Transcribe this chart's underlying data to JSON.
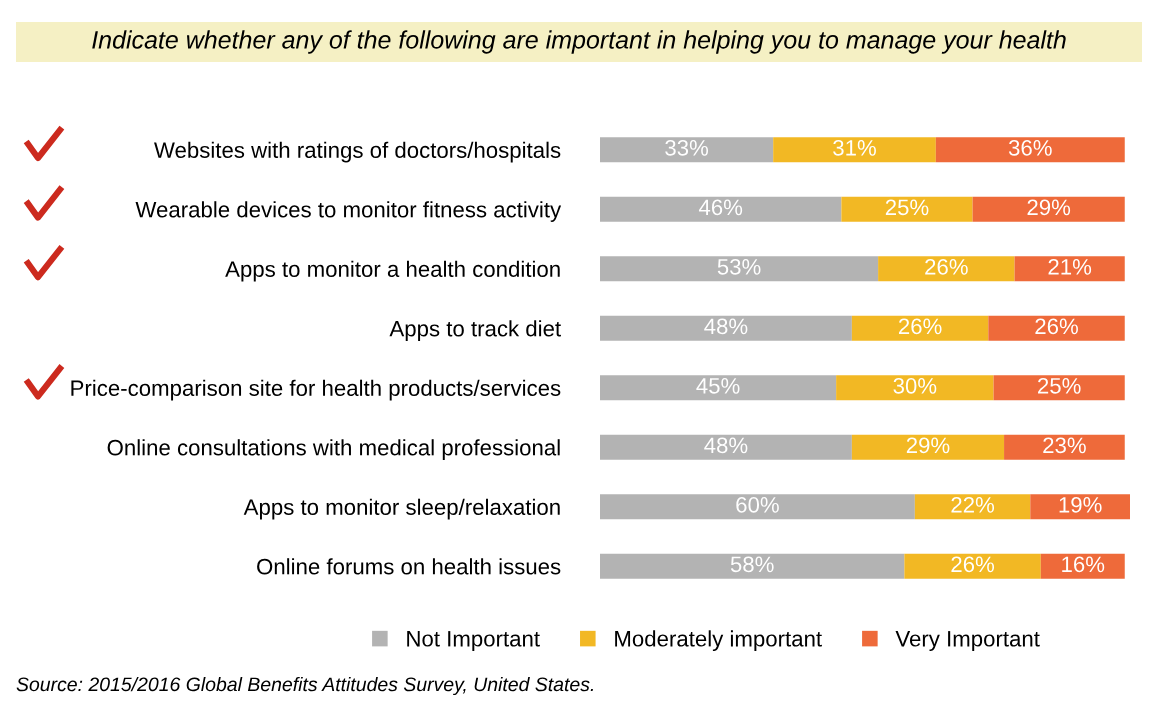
{
  "chart_data": {
    "type": "bar",
    "orientation": "horizontal",
    "stacked": true,
    "title": "Indicate whether any of the following are important in helping you to manage your health",
    "categories": [
      "Websites with ratings of doctors/hospitals",
      "Wearable devices to monitor fitness activity",
      "Apps to monitor a health condition",
      "Apps to track diet",
      "Price-comparison site for health products/services",
      "Online consultations with medical professional",
      "Apps to monitor sleep/relaxation",
      "Online forums on health issues"
    ],
    "series": [
      {
        "name": "Not Important",
        "color": "#b3b3b3",
        "values": [
          33,
          46,
          53,
          48,
          45,
          48,
          60,
          58
        ],
        "value_labels": [
          "33%",
          "46%",
          "53%",
          "48%",
          "45%",
          "48%",
          "60%",
          "58%"
        ]
      },
      {
        "name": "Moderately important",
        "color": "#f2b824",
        "values": [
          31,
          25,
          26,
          26,
          30,
          29,
          22,
          26
        ],
        "value_labels": [
          "31%",
          "25%",
          "26%",
          "26%",
          "30%",
          "29%",
          "22%",
          "26%"
        ]
      },
      {
        "name": "Very Important",
        "color": "#ee6a3a",
        "values": [
          36,
          29,
          21,
          26,
          25,
          23,
          19,
          16
        ],
        "value_labels": [
          "36%",
          "29%",
          "21%",
          "26%",
          "25%",
          "23%",
          "19%",
          "16%"
        ]
      }
    ],
    "tick_labels": false,
    "legend": "bottom",
    "grid": false,
    "annotations": [
      "Source: 2015/2016 Global Benefits Attitudes Survey, United States."
    ]
  }
}
